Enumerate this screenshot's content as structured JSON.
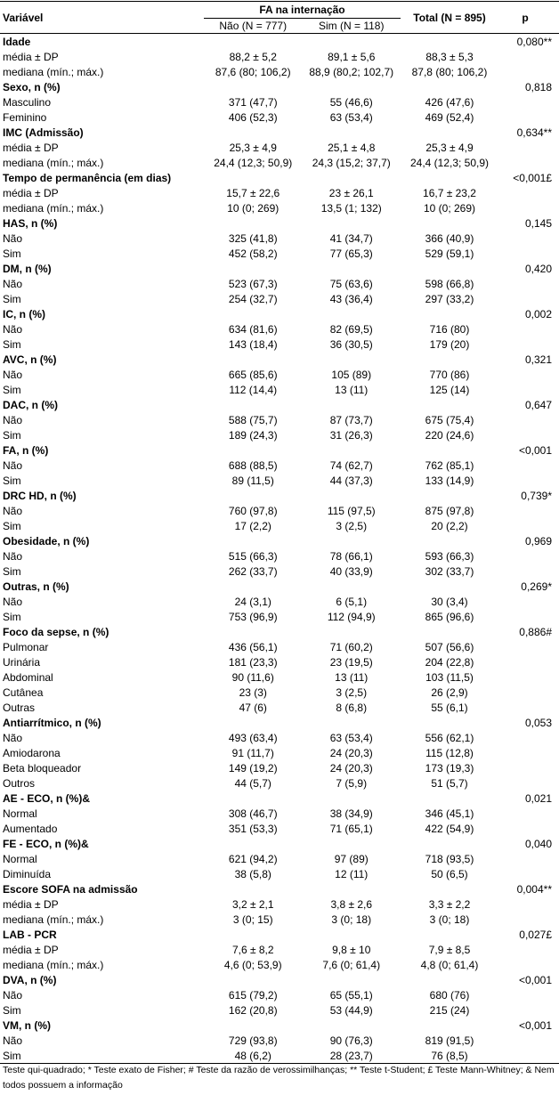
{
  "header": {
    "variable": "Variável",
    "group": "FA na internação",
    "nao": "Não (N = 777)",
    "sim": "Sim (N = 118)",
    "total": "Total (N = 895)",
    "p": "p"
  },
  "sections": [
    {
      "title": "Idade",
      "p": "0,080**",
      "bold_p": false,
      "rows": [
        {
          "label": "média ± DP",
          "nao": "88,2 ± 5,2",
          "sim": "89,1 ± 5,6",
          "total": "88,3 ± 5,3"
        },
        {
          "label": "mediana (mín.; máx.)",
          "nao": "87,6 (80; 106,2)",
          "sim": "88,9 (80,2; 102,7)",
          "total": "87,8 (80; 106,2)"
        }
      ]
    },
    {
      "title": "Sexo, n (%)",
      "p": "0,818",
      "bold_p": false,
      "rows": [
        {
          "label": "Masculino",
          "nao": "371 (47,7)",
          "sim": "55 (46,6)",
          "total": "426 (47,6)"
        },
        {
          "label": "Feminino",
          "nao": "406 (52,3)",
          "sim": "63 (53,4)",
          "total": "469 (52,4)"
        }
      ]
    },
    {
      "title": "IMC (Admissão)",
      "p": "0,634**",
      "bold_p": false,
      "rows": [
        {
          "label": "média ± DP",
          "nao": "25,3 ± 4,9",
          "sim": "25,1 ± 4,8",
          "total": "25,3 ± 4,9"
        },
        {
          "label": "mediana (mín.; máx.)",
          "nao": "24,4 (12,3; 50,9)",
          "sim": "24,3 (15,2; 37,7)",
          "total": "24,4 (12,3; 50,9)"
        }
      ]
    },
    {
      "title": "Tempo de permanência (em dias)",
      "p": "<0,001£",
      "bold_p": true,
      "rows": [
        {
          "label": "média ± DP",
          "nao": "15,7 ± 22,6",
          "sim": "23 ± 26,1",
          "total": "16,7 ± 23,2"
        },
        {
          "label": "mediana (mín.; máx.)",
          "nao": "10 (0; 269)",
          "sim": "13,5 (1; 132)",
          "total": "10 (0; 269)"
        }
      ]
    },
    {
      "title": "HAS, n (%)",
      "p": "0,145",
      "bold_p": false,
      "rows": [
        {
          "label": "Não",
          "nao": "325 (41,8)",
          "sim": "41 (34,7)",
          "total": "366 (40,9)"
        },
        {
          "label": "Sim",
          "nao": "452 (58,2)",
          "sim": "77 (65,3)",
          "total": "529 (59,1)"
        }
      ]
    },
    {
      "title": "DM, n (%)",
      "p": "0,420",
      "bold_p": false,
      "rows": [
        {
          "label": "Não",
          "nao": "523 (67,3)",
          "sim": "75 (63,6)",
          "total": "598 (66,8)"
        },
        {
          "label": "Sim",
          "nao": "254 (32,7)",
          "sim": "43 (36,4)",
          "total": "297 (33,2)"
        }
      ]
    },
    {
      "title": "IC, n (%)",
      "p": "0,002",
      "bold_p": true,
      "rows": [
        {
          "label": "Não",
          "nao": "634 (81,6)",
          "sim": "82 (69,5)",
          "total": "716 (80)"
        },
        {
          "label": "Sim",
          "nao": "143 (18,4)",
          "sim": "36 (30,5)",
          "total": "179 (20)"
        }
      ]
    },
    {
      "title": "AVC, n (%)",
      "p": "0,321",
      "bold_p": false,
      "rows": [
        {
          "label": "Não",
          "nao": "665 (85,6)",
          "sim": "105 (89)",
          "total": "770 (86)"
        },
        {
          "label": "Sim",
          "nao": "112 (14,4)",
          "sim": "13 (11)",
          "total": "125 (14)"
        }
      ]
    },
    {
      "title": "DAC, n (%)",
      "p": "0,647",
      "bold_p": false,
      "rows": [
        {
          "label": "Não",
          "nao": "588 (75,7)",
          "sim": "87 (73,7)",
          "total": "675 (75,4)"
        },
        {
          "label": "Sim",
          "nao": "189 (24,3)",
          "sim": "31 (26,3)",
          "total": "220 (24,6)"
        }
      ]
    },
    {
      "title": "FA, n (%)",
      "p": "<0,001",
      "bold_p": true,
      "rows": [
        {
          "label": "Não",
          "nao": "688 (88,5)",
          "sim": "74 (62,7)",
          "total": "762 (85,1)"
        },
        {
          "label": "Sim",
          "nao": "89 (11,5)",
          "sim": "44 (37,3)",
          "total": "133 (14,9)"
        }
      ]
    },
    {
      "title": "DRC HD, n (%)",
      "p": "0,739*",
      "bold_p": false,
      "rows": [
        {
          "label": "Não",
          "nao": "760 (97,8)",
          "sim": "115 (97,5)",
          "total": "875 (97,8)"
        },
        {
          "label": "Sim",
          "nao": "17 (2,2)",
          "sim": "3 (2,5)",
          "total": "20 (2,2)"
        }
      ]
    },
    {
      "title": "Obesidade, n (%)",
      "p": "0,969",
      "bold_p": false,
      "rows": [
        {
          "label": "Não",
          "nao": "515 (66,3)",
          "sim": "78 (66,1)",
          "total": "593 (66,3)"
        },
        {
          "label": "Sim",
          "nao": "262 (33,7)",
          "sim": "40 (33,9)",
          "total": "302 (33,7)"
        }
      ]
    },
    {
      "title": "Outras, n (%)",
      "p": "0,269*",
      "bold_p": false,
      "rows": [
        {
          "label": "Não",
          "nao": "24 (3,1)",
          "sim": "6 (5,1)",
          "total": "30 (3,4)"
        },
        {
          "label": "Sim",
          "nao": "753 (96,9)",
          "sim": "112 (94,9)",
          "total": "865 (96,6)"
        }
      ]
    },
    {
      "title": "Foco da sepse, n (%)",
      "p": "0,886#",
      "bold_p": false,
      "rows": [
        {
          "label": "Pulmonar",
          "nao": "436 (56,1)",
          "sim": "71 (60,2)",
          "total": "507 (56,6)"
        },
        {
          "label": "Urinária",
          "nao": "181 (23,3)",
          "sim": "23 (19,5)",
          "total": "204 (22,8)"
        },
        {
          "label": "Abdominal",
          "nao": "90 (11,6)",
          "sim": "13 (11)",
          "total": "103 (11,5)"
        },
        {
          "label": "Cutânea",
          "nao": "23 (3)",
          "sim": "3 (2,5)",
          "total": "26 (2,9)"
        },
        {
          "label": "Outras",
          "nao": "47 (6)",
          "sim": "8 (6,8)",
          "total": "55 (6,1)"
        }
      ]
    },
    {
      "title": "Antiarrítmico, n (%)",
      "p": "0,053",
      "bold_p": false,
      "rows": [
        {
          "label": "Não",
          "nao": "493 (63,4)",
          "sim": "63 (53,4)",
          "total": "556 (62,1)"
        },
        {
          "label": "Amiodarona",
          "nao": "91 (11,7)",
          "sim": "24 (20,3)",
          "total": "115 (12,8)"
        },
        {
          "label": "Beta bloqueador",
          "nao": "149 (19,2)",
          "sim": "24 (20,3)",
          "total": "173 (19,3)"
        },
        {
          "label": "Outros",
          "nao": "44 (5,7)",
          "sim": "7 (5,9)",
          "total": "51 (5,7)"
        }
      ]
    },
    {
      "title": "AE - ECO, n (%)&",
      "p": "0,021",
      "bold_p": true,
      "rows": [
        {
          "label": "Normal",
          "nao": "308 (46,7)",
          "sim": "38 (34,9)",
          "total": "346 (45,1)"
        },
        {
          "label": "Aumentado",
          "nao": "351 (53,3)",
          "sim": "71 (65,1)",
          "total": "422 (54,9)"
        }
      ]
    },
    {
      "title": "FE - ECO, n (%)&",
      "p": "0,040",
      "bold_p": true,
      "rows": [
        {
          "label": "Normal",
          "nao": "621 (94,2)",
          "sim": "97 (89)",
          "total": "718 (93,5)"
        },
        {
          "label": "Diminuída",
          "nao": "38 (5,8)",
          "sim": "12 (11)",
          "total": "50 (6,5)"
        }
      ]
    },
    {
      "title": "Escore SOFA na admissão",
      "p": "0,004**",
      "bold_p": true,
      "rows": [
        {
          "label": "média ± DP",
          "nao": "3,2 ± 2,1",
          "sim": "3,8 ± 2,6",
          "total": "3,3 ± 2,2"
        },
        {
          "label": "mediana (mín.; máx.)",
          "nao": "3 (0; 15)",
          "sim": "3 (0; 18)",
          "total": "3 (0; 18)"
        }
      ]
    },
    {
      "title": "LAB - PCR",
      "p": "0,027£",
      "bold_p": true,
      "rows": [
        {
          "label": "média ± DP",
          "nao": "7,6 ± 8,2",
          "sim": "9,8 ± 10",
          "total": "7,9 ± 8,5"
        },
        {
          "label": "mediana (mín.; máx.)",
          "nao": "4,6 (0; 53,9)",
          "sim": "7,6 (0; 61,4)",
          "total": "4,8 (0; 61,4)"
        }
      ]
    },
    {
      "title": "DVA, n (%)",
      "p": "<0,001",
      "bold_p": true,
      "rows": [
        {
          "label": "Não",
          "nao": "615 (79,2)",
          "sim": "65 (55,1)",
          "total": "680 (76)"
        },
        {
          "label": "Sim",
          "nao": "162 (20,8)",
          "sim": "53 (44,9)",
          "total": "215 (24)"
        }
      ]
    },
    {
      "title": "VM, n (%)",
      "p": "<0,001",
      "bold_p": true,
      "rows": [
        {
          "label": "Não",
          "nao": "729 (93,8)",
          "sim": "90 (76,3)",
          "total": "819 (91,5)"
        },
        {
          "label": "Sim",
          "nao": "48 (6,2)",
          "sim": "28 (23,7)",
          "total": "76 (8,5)"
        }
      ]
    }
  ],
  "footnote": "Teste qui-quadrado; * Teste exato de Fisher; # Teste da razão de verossimilhanças; ** Teste t-Student; £ Teste Mann-Whitney; & Nem todos possuem a informação"
}
